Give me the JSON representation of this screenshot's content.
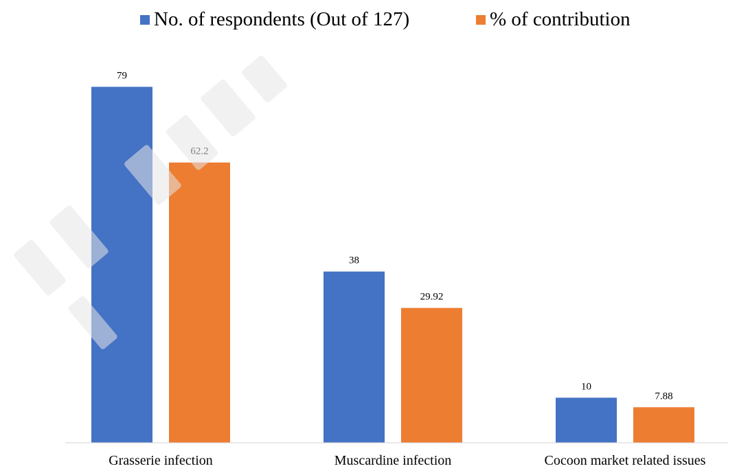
{
  "chart_data": {
    "type": "bar",
    "title": "",
    "xlabel": "",
    "ylabel": "",
    "categories": [
      "Grasserie infection",
      "Muscardine infection",
      "Cocoon market related issues"
    ],
    "series": [
      {
        "name": "No. of respondents  (Out of 127)",
        "values": [
          79,
          38,
          10
        ],
        "labels": [
          "79",
          "38",
          "10"
        ],
        "color": "#4472C4"
      },
      {
        "name": "% of contribution",
        "values": [
          62.2,
          29.92,
          7.88
        ],
        "labels": [
          "62.2",
          "29.92",
          "7.88"
        ],
        "color": "#ED7D31"
      }
    ],
    "ylim": [
      0,
      87.3
    ],
    "grid": false,
    "legend_position": "top",
    "axis_color": "#d0d0d0",
    "text_color": "#000000"
  }
}
